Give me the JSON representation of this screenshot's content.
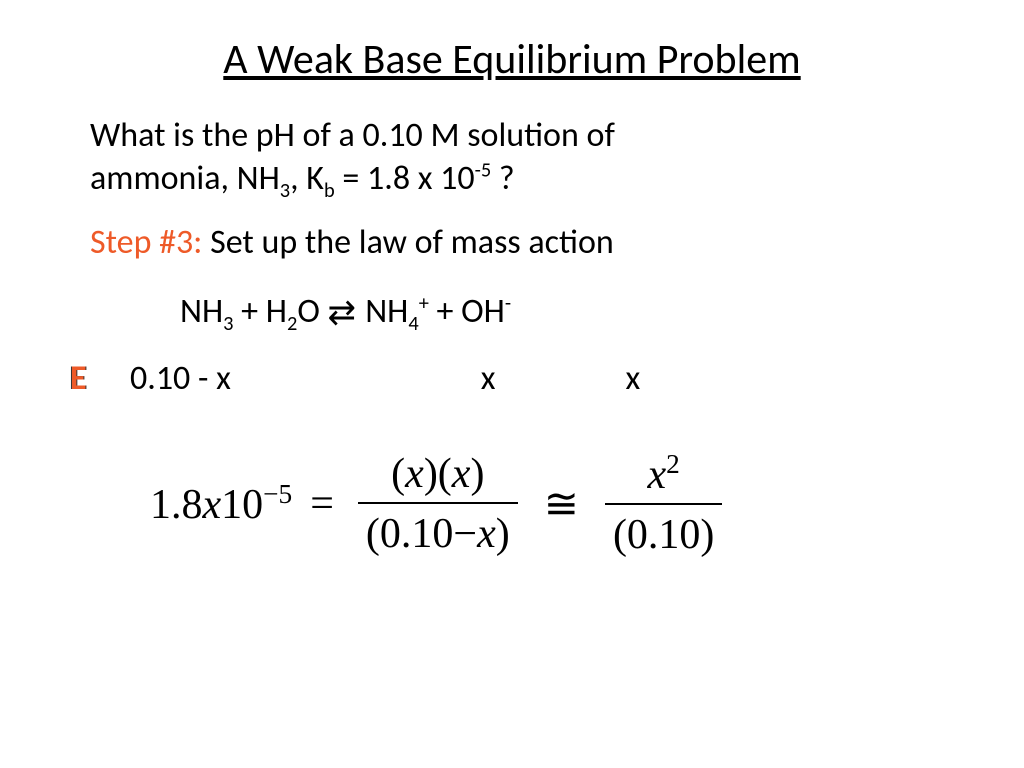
{
  "colors": {
    "text": "#000000",
    "accent": "#ee5a28",
    "background": "#ffffff"
  },
  "title": "A Weak Base Equilibrium Problem",
  "question": {
    "line1_pre": "What is the pH of a 0.10 M solution of ",
    "line2_pre": "ammonia, NH",
    "nh3_sub": "3",
    "kb_pre": ", K",
    "kb_sub": "b",
    "kb_eq": " = 1.8 x 10",
    "kb_exp": "-5",
    "q_end": " ?"
  },
  "step": {
    "label": "Step #3:",
    "text": " Set up the law of mass action"
  },
  "reaction": {
    "r1": "NH",
    "r1s": "3",
    "plus1": " + H",
    "r2s": "2",
    "r2": "O ",
    "arrow": "⇄",
    "p1_pre": "  NH",
    "p1s": "4",
    "p1sup": "+",
    "plus2": " + OH",
    "p2sup": "-"
  },
  "ice": {
    "label": "E",
    "v1": "0.10 - x",
    "v2": "x",
    "v3": "x"
  },
  "math": {
    "lhs_coeff": "1.8",
    "lhs_x": "x",
    "lhs_base": "10",
    "lhs_exp": "−5",
    "eq": "=",
    "num1_open": "(",
    "num1_x1": "x",
    "num1_mid": ")(",
    "num1_x2": "x",
    "num1_close": ")",
    "den1_open": "(0.10",
    "den1_minus": "−",
    "den1_x": "x",
    "den1_close": ")",
    "approx": "≅",
    "num2_x": "x",
    "num2_exp": "2",
    "den2": "(0.10)"
  }
}
